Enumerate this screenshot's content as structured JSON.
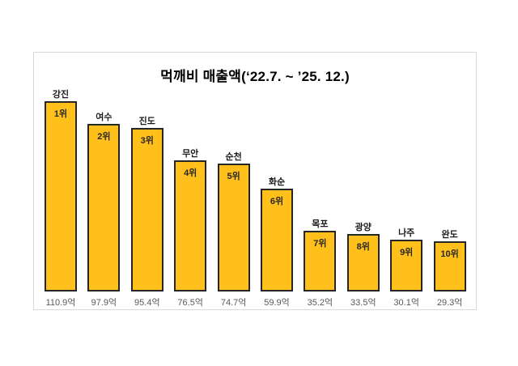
{
  "title": "먹깨비 매출액(‘22.7. ~ ’25. 12.)",
  "chart_data": {
    "type": "bar",
    "title": "먹깨비 매출액(‘22.7. ~ ’25. 12.)",
    "categories": [
      "강진",
      "여수",
      "진도",
      "무안",
      "순천",
      "화순",
      "목포",
      "광양",
      "나주",
      "완도"
    ],
    "values": [
      110.9,
      97.9,
      95.4,
      76.5,
      74.7,
      59.9,
      35.2,
      33.5,
      30.1,
      29.3
    ],
    "rank_labels": [
      "1위",
      "2위",
      "3위",
      "4위",
      "5위",
      "6위",
      "7위",
      "8위",
      "9위",
      "10위"
    ],
    "value_labels": [
      "110.9억",
      "97.9억",
      "95.4억",
      "76.5억",
      "74.7억",
      "59.9억",
      "35.2억",
      "33.5억",
      "30.1억",
      "29.3억"
    ],
    "unit": "억",
    "xlabel": "",
    "ylabel": "",
    "ylim": [
      0,
      120
    ],
    "grid": false,
    "legend": false,
    "colors": {
      "bar_fill": "#FFC01C",
      "bar_border": "#262626",
      "rank_text": "#262626",
      "category_text": "#1a1a1a",
      "value_text": "#595959",
      "panel_border": "#d9d9d9"
    }
  }
}
